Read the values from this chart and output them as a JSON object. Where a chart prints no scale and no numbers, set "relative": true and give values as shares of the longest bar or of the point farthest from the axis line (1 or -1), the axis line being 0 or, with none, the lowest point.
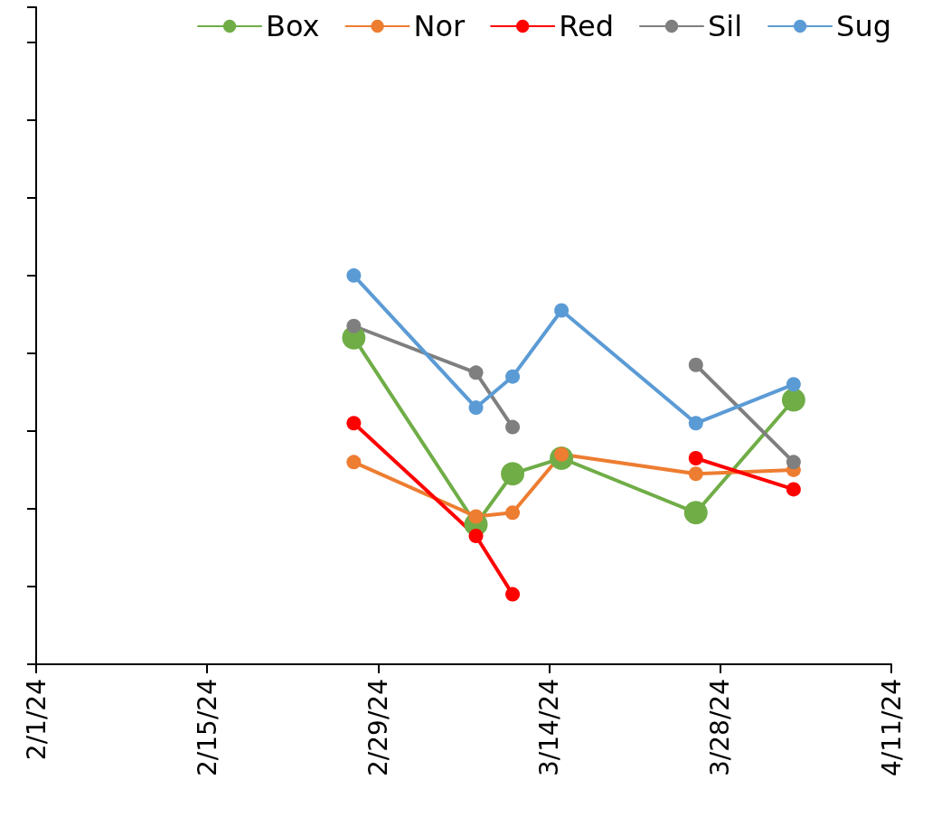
{
  "chart_data": {
    "type": "line",
    "relative": true,
    "x": [
      "--02-27",
      "--03-08",
      "--03-11",
      "--03-15",
      "--03-26",
      "--04-03"
    ],
    "xlim": [
      "--02-01",
      "--04-11"
    ],
    "xticks": [
      {
        "value": "--02-01",
        "label": "2/1/24"
      },
      {
        "value": "--02-15",
        "label": "2/15/24"
      },
      {
        "value": "--02-29",
        "label": "2/29/24"
      },
      {
        "value": "--03-14",
        "label": "3/14/24"
      },
      {
        "value": "--03-28",
        "label": "3/28/24"
      },
      {
        "value": "--04-11",
        "label": "4/11/24"
      }
    ],
    "series": [
      {
        "name": "Box",
        "color": "#70ad47",
        "values": [
          0.84,
          0.36,
          0.49,
          0.53,
          0.39,
          0.68
        ]
      },
      {
        "name": "Nor",
        "color": "#ed7d31",
        "values": [
          0.52,
          0.38,
          0.39,
          0.54,
          0.49,
          0.5
        ]
      },
      {
        "name": "Red",
        "color": "#ff0000",
        "values": [
          0.62,
          0.33,
          0.18,
          null,
          0.53,
          0.45
        ]
      },
      {
        "name": "Sil",
        "color": "#7f7f7f",
        "values": [
          0.87,
          0.75,
          0.61,
          null,
          0.77,
          0.52
        ]
      },
      {
        "name": "Sug",
        "color": "#5b9bd5",
        "values": [
          1,
          0.66,
          0.74,
          0.91,
          0.62,
          0.72
        ]
      }
    ],
    "legend": "top right",
    "grid": false,
    "marker": "circle",
    "line_style": "solid"
  }
}
